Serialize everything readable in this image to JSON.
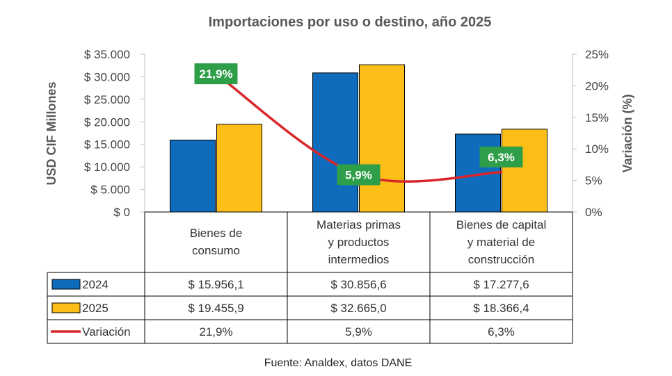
{
  "chart_data": {
    "type": "bar",
    "title": "Importaciones por uso o destino, año 2025",
    "ylabel": "USD CIF Millones",
    "y2label": "Variación (%)",
    "ylim": [
      0,
      35000
    ],
    "y2lim": [
      0,
      25
    ],
    "yticks": [
      "$ 0",
      "$ 5.000",
      "$ 10.000",
      "$ 15.000",
      "$ 20.000",
      "$ 25.000",
      "$ 30.000",
      "$ 35.000"
    ],
    "y2ticks": [
      "0%",
      "5%",
      "10%",
      "15%",
      "20%",
      "25%"
    ],
    "categories": [
      [
        "Bienes de",
        "consumo"
      ],
      [
        "Materias primas",
        "y productos",
        "intermedios"
      ],
      [
        "Bienes de capital",
        "y material de",
        "construcción"
      ]
    ],
    "series": [
      {
        "name": "2024",
        "type": "bar",
        "color": "#0F6CBD",
        "values": [
          15956.1,
          30856.6,
          17277.6
        ],
        "labels": [
          "$ 15.956,1",
          "$ 30.856,6",
          "$ 17.277,6"
        ]
      },
      {
        "name": "2025",
        "type": "bar",
        "color": "#FDBF17",
        "values": [
          19455.9,
          32665.0,
          18366.4
        ],
        "labels": [
          "$ 19.455,9",
          "$ 32.665,0",
          "$ 18.366,4"
        ]
      },
      {
        "name": "Variación",
        "type": "line",
        "axis": "secondary",
        "color": "#D9262B",
        "values": [
          21.9,
          5.9,
          6.3
        ],
        "labels": [
          "21,9%",
          "5,9%",
          "6,3%"
        ]
      }
    ],
    "data_label_color": "#2E9E48",
    "source": "Fuente: Analdex, datos DANE"
  }
}
